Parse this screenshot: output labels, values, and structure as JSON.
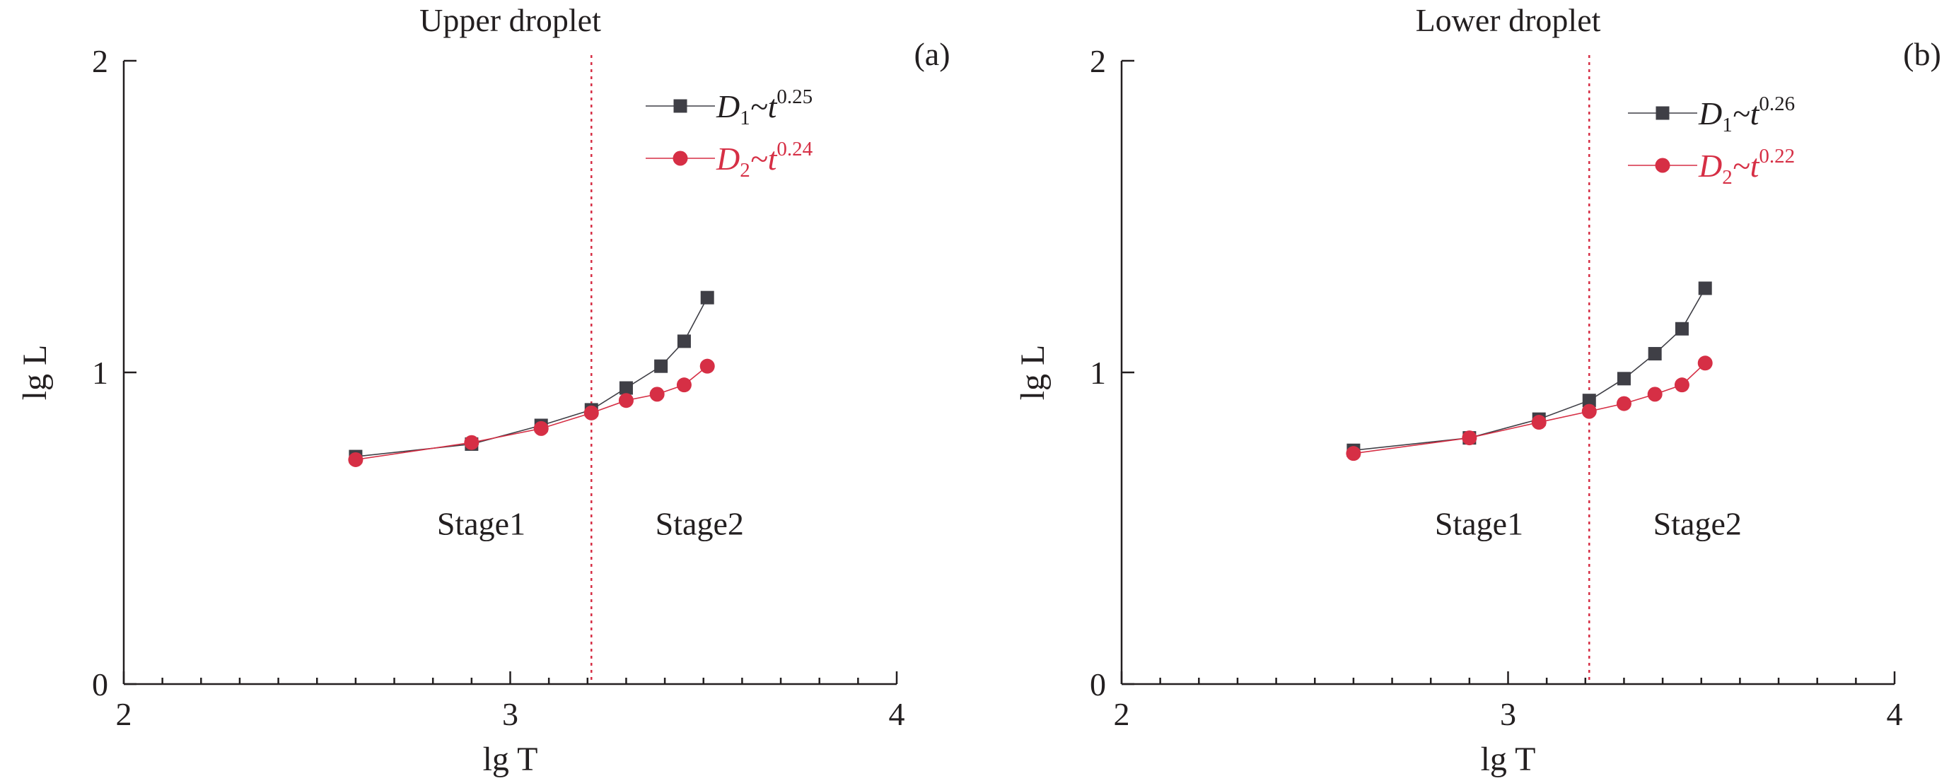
{
  "colors": {
    "series1": "#3f3f46",
    "series2": "#d62f45",
    "divider": "#d62f45",
    "axis": "#231f20"
  },
  "chart_data": [
    {
      "type": "line",
      "title": "Upper droplet",
      "panel_tag": "(a)",
      "xlabel": "lg T",
      "ylabel": "lg L",
      "xlim": [
        2,
        4
      ],
      "ylim": [
        0,
        2
      ],
      "x_ticks": [
        "2",
        "3",
        "4"
      ],
      "y_ticks": [
        "0",
        "1",
        "2"
      ],
      "x_minor_step": 0.1,
      "divider_x": 3.21,
      "stage_labels": [
        "Stage1",
        "Stage2"
      ],
      "stage_label_y": 0.48,
      "series": [
        {
          "name": "D1~t^0.25",
          "legend": {
            "base": "D",
            "sub": "1",
            "mid": "~t",
            "sup": "0.25"
          },
          "marker": "square",
          "x": [
            2.6,
            2.9,
            3.08,
            3.21,
            3.3,
            3.39,
            3.45,
            3.51
          ],
          "y": [
            0.73,
            0.77,
            0.83,
            0.88,
            0.95,
            1.02,
            1.1,
            1.24
          ]
        },
        {
          "name": "D2~t^0.24",
          "legend": {
            "base": "D",
            "sub": "2",
            "mid": "~t",
            "sup": "0.24"
          },
          "marker": "circle",
          "x": [
            2.6,
            2.9,
            3.08,
            3.21,
            3.3,
            3.38,
            3.45,
            3.51
          ],
          "y": [
            0.72,
            0.775,
            0.82,
            0.87,
            0.91,
            0.93,
            0.96,
            1.02
          ]
        }
      ]
    },
    {
      "type": "line",
      "title": "Lower droplet",
      "panel_tag": "(b)",
      "xlabel": "lg T",
      "ylabel": "lg L",
      "xlim": [
        2,
        4
      ],
      "ylim": [
        0,
        2
      ],
      "x_ticks": [
        "2",
        "3",
        "4"
      ],
      "y_ticks": [
        "0",
        "1",
        "2"
      ],
      "x_minor_step": 0.1,
      "divider_x": 3.21,
      "stage_labels": [
        "Stage1",
        "Stage2"
      ],
      "stage_label_y": 0.48,
      "series": [
        {
          "name": "D1~t^0.26",
          "legend": {
            "base": "D",
            "sub": "1",
            "mid": "~t",
            "sup": "0.26"
          },
          "marker": "square",
          "x": [
            2.6,
            2.9,
            3.08,
            3.21,
            3.3,
            3.38,
            3.45,
            3.51
          ],
          "y": [
            0.75,
            0.79,
            0.85,
            0.91,
            0.98,
            1.06,
            1.14,
            1.27
          ]
        },
        {
          "name": "D2~t^0.22",
          "legend": {
            "base": "D",
            "sub": "2",
            "mid": "~t",
            "sup": "0.22"
          },
          "marker": "circle",
          "x": [
            2.6,
            2.9,
            3.08,
            3.21,
            3.3,
            3.38,
            3.45,
            3.51
          ],
          "y": [
            0.74,
            0.79,
            0.84,
            0.875,
            0.9,
            0.93,
            0.96,
            1.03
          ]
        }
      ]
    }
  ]
}
